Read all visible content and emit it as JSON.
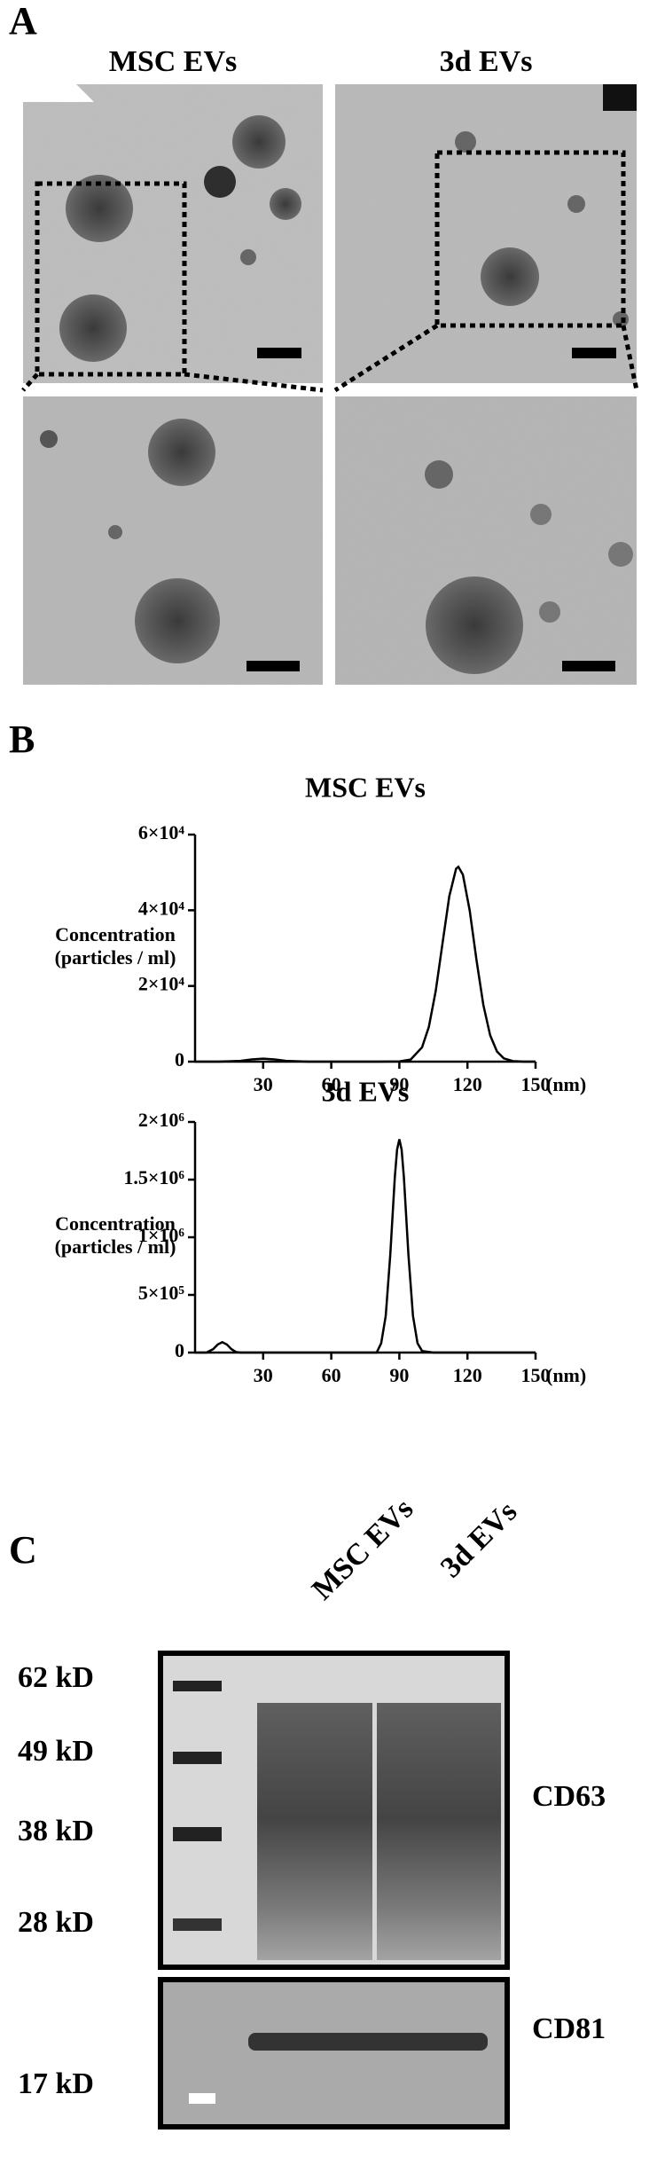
{
  "panel_a": {
    "label": "A",
    "titles": [
      "MSC EVs",
      "3d EVs"
    ]
  },
  "panel_b": {
    "label": "B"
  },
  "chart_data": [
    {
      "type": "line",
      "title": "MSC EVs",
      "ylabel": [
        "Concentration",
        "(particles / ml)"
      ],
      "xlabel": "(nm)",
      "x": [
        0,
        10,
        20,
        25,
        30,
        35,
        40,
        50,
        60,
        70,
        80,
        90,
        95,
        100,
        103,
        106,
        109,
        112,
        115,
        116,
        118,
        121,
        124,
        127,
        130,
        133,
        136,
        140,
        145,
        150
      ],
      "series": [
        {
          "color": "#000000",
          "values": [
            0,
            0,
            200,
            600,
            800,
            600,
            200,
            0,
            0,
            0,
            0,
            50,
            570,
            3780,
            9200,
            18600,
            31200,
            43700,
            51000,
            51500,
            49400,
            39900,
            26800,
            15000,
            6970,
            2690,
            870,
            145,
            0,
            0
          ]
        }
      ],
      "xlim": [
        0,
        150
      ],
      "xticks": [
        30,
        60,
        90,
        120,
        150
      ],
      "ylim": [
        0,
        60000
      ],
      "yticks": [
        0,
        {
          "value": 20000,
          "label": "2×10⁴"
        },
        {
          "value": 40000,
          "label": "4×10⁴"
        },
        {
          "value": 60000,
          "label": "6×10⁴"
        }
      ]
    },
    {
      "type": "line",
      "title": "3d EVs",
      "ylabel": [
        "Concentration",
        "(particles / ml)"
      ],
      "xlabel": "(nm)",
      "x": [
        0,
        5,
        8,
        10,
        12,
        14,
        16,
        18,
        20,
        30,
        60,
        80,
        82,
        84,
        86,
        88,
        89,
        90,
        91,
        92,
        94,
        96,
        98,
        100,
        105,
        120,
        150
      ],
      "series": [
        {
          "color": "#000000",
          "values": [
            0,
            0,
            30000,
            70000,
            90000,
            70000,
            30000,
            5000,
            0,
            0,
            0,
            0,
            81000,
            318000,
            848000,
            1520000,
            1760000,
            1850000,
            1760000,
            1520000,
            848000,
            318000,
            81000,
            14000,
            0,
            0,
            0
          ]
        }
      ],
      "xlim": [
        0,
        150
      ],
      "xticks": [
        30,
        60,
        90,
        120,
        150
      ],
      "ylim": [
        0,
        2000000
      ],
      "yticks": [
        0,
        {
          "value": 500000,
          "label": "5×10⁵"
        },
        {
          "value": 1000000,
          "label": "1×10⁶"
        },
        {
          "value": 1500000,
          "label": "1.5×10⁶"
        },
        {
          "value": 2000000,
          "label": "2×10⁶"
        }
      ]
    }
  ],
  "panel_c": {
    "label": "C",
    "lanes": [
      "MSC EVs",
      "3d EVs"
    ],
    "markers": [
      "62 kD",
      "49 kD",
      "38 kD",
      "28 kD",
      "17 kD"
    ],
    "bands": [
      "CD63",
      "CD81"
    ]
  }
}
